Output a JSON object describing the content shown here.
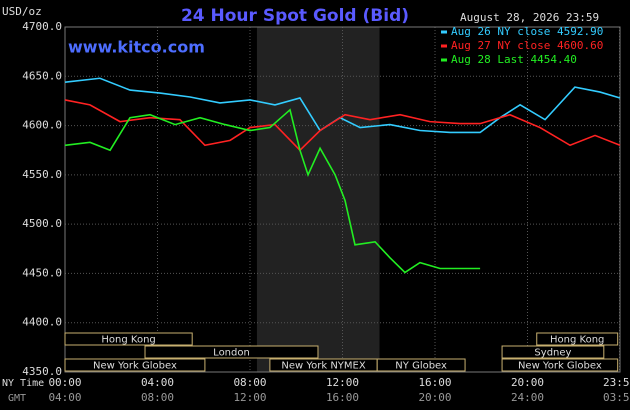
{
  "chart_data": {
    "type": "line",
    "title": "24 Hour Spot Gold (Bid)",
    "site": "www.kitco.com",
    "unit_label": "USD/oz",
    "timestamp": "August 28, 2026 23:59",
    "x_row_label": "NY Time",
    "x2_row_label": "GMT",
    "xlim": [
      0,
      24
    ],
    "xticks": [
      {
        "value": 0,
        "label": "00:00"
      },
      {
        "value": 4,
        "label": "04:00"
      },
      {
        "value": 8,
        "label": "08:00"
      },
      {
        "value": 12,
        "label": "12:00"
      },
      {
        "value": 16,
        "label": "16:00"
      },
      {
        "value": 20,
        "label": "20:00"
      },
      {
        "value": 23.98,
        "label": "23:59"
      }
    ],
    "x2_tick_labels": [
      "04:00",
      "08:00",
      "12:00",
      "16:00",
      "20:00",
      "24:00",
      "03:59"
    ],
    "ylim": [
      4350,
      4700
    ],
    "yticks": [
      {
        "value": 4350,
        "label": "4350.0"
      },
      {
        "value": 4400,
        "label": "4400.0"
      },
      {
        "value": 4450,
        "label": "4450.0"
      },
      {
        "value": 4500,
        "label": "4500.0"
      },
      {
        "value": 4550,
        "label": "4550.0"
      },
      {
        "value": 4600,
        "label": "4600.0"
      },
      {
        "value": 4650,
        "label": "4650.0"
      },
      {
        "value": 4700,
        "label": "4700.0"
      }
    ],
    "grid": true,
    "shaded": [
      8.3,
      13.6
    ],
    "series": [
      {
        "name": "Aug 26 NY close 4592.90",
        "color": "#33ccff",
        "x": [
          0,
          1.51,
          2.81,
          4.11,
          5.41,
          6.7,
          8.0,
          9.08,
          10.16,
          11.03,
          11.89,
          12.76,
          14.05,
          15.35,
          16.65,
          17.95,
          18.81,
          19.68,
          20.76,
          22.05,
          23.14,
          24
        ],
        "values": [
          4644,
          4648,
          4636,
          4633,
          4629,
          4623,
          4626,
          4621,
          4628,
          4595,
          4608,
          4598,
          4601,
          4595,
          4593,
          4593,
          4608,
          4621,
          4606,
          4639,
          4634,
          4628
        ]
      },
      {
        "name": "Aug 27 NY close 4600.60",
        "color": "#ff2222",
        "x": [
          0,
          1.08,
          2.38,
          3.68,
          4.97,
          6.05,
          7.14,
          8.0,
          9.08,
          10.16,
          11.03,
          12.11,
          13.19,
          14.49,
          15.78,
          17.08,
          17.95,
          19.24,
          20.54,
          21.84,
          22.92,
          24
        ],
        "values": [
          4626,
          4621,
          4604,
          4608,
          4606,
          4580,
          4585,
          4598,
          4601,
          4575,
          4595,
          4611,
          4606,
          4611,
          4604,
          4602,
          4602,
          4611,
          4598,
          4580,
          4590,
          4580
        ]
      },
      {
        "name": "Aug 28 Last 4454.40",
        "color": "#22ee22",
        "x": [
          0,
          1.08,
          1.95,
          2.81,
          3.68,
          4.76,
          5.84,
          6.92,
          8.0,
          8.86,
          9.73,
          10.16,
          10.51,
          11.03,
          11.68,
          12.11,
          12.54,
          13.41,
          14.05,
          14.7,
          15.35,
          16.22,
          17.08,
          17.95
        ],
        "values": [
          4580,
          4583,
          4575,
          4608,
          4611,
          4601,
          4608,
          4601,
          4595,
          4598,
          4616,
          4575,
          4550,
          4577,
          4550,
          4524,
          4479,
          4482,
          4466,
          4451,
          4461,
          4455,
          4455,
          4455
        ]
      }
    ],
    "session_rows": [
      [
        {
          "name": "Hong Kong",
          "start": 0,
          "end": 5.5
        },
        {
          "name": "Hong Kong",
          "start": 20.4,
          "end": 23.9
        }
      ],
      [
        {
          "name": "London",
          "start": 3.46,
          "end": 10.94
        },
        {
          "name": "Sydney",
          "start": 18.9,
          "end": 23.3
        }
      ],
      [
        {
          "name": "New York Globex",
          "start": 0,
          "end": 6.05
        },
        {
          "name": "New York NYMEX",
          "start": 8.86,
          "end": 13.5
        },
        {
          "name": "NY Globex",
          "start": 13.5,
          "end": 17.3
        },
        {
          "name": "New York Globex",
          "start": 18.9,
          "end": 23.9
        }
      ]
    ]
  }
}
